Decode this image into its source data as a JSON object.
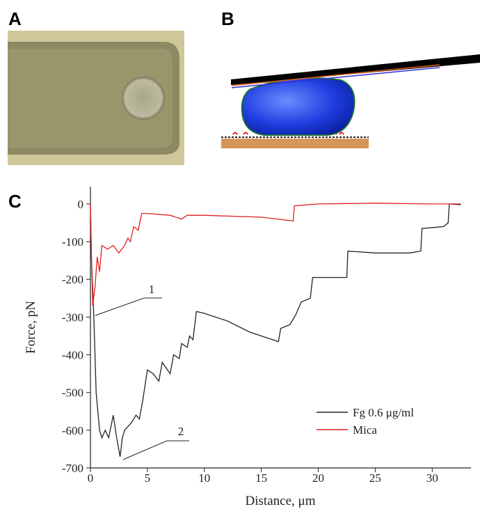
{
  "panel_labels": {
    "a": "A",
    "b": "B",
    "c": "C"
  },
  "chart_data": {
    "type": "line",
    "x_label": "Distance, μm",
    "y_label": "Force, pN",
    "xlim": [
      0,
      33.4
    ],
    "xticks": [
      0,
      5,
      10,
      15,
      20,
      25,
      30
    ],
    "ylim": [
      -700,
      46
    ],
    "yticks": [
      -700,
      -600,
      -500,
      -400,
      -300,
      -200,
      -100,
      0
    ],
    "legend": "lower right",
    "annotations": [
      "1",
      "2"
    ],
    "series": [
      {
        "name": "Fg 0.6 μg/ml",
        "color": "#222222",
        "x": [
          0,
          0.1,
          0.3,
          0.5,
          0.8,
          1.0,
          1.3,
          1.6,
          2.0,
          2.3,
          2.6,
          2.8,
          3.0,
          3.3,
          3.6,
          4.0,
          4.3,
          4.6,
          5.0,
          5.5,
          6.0,
          6.3,
          7.0,
          7.3,
          7.8,
          8.0,
          8.5,
          8.7,
          9.0,
          9.3,
          10,
          12,
          14,
          16.5,
          16.7,
          17.5,
          18,
          18.5,
          19.3,
          19.5,
          22.5,
          22.6,
          25,
          28,
          29,
          29.1,
          31,
          31.4,
          31.5,
          32.5
        ],
        "values": [
          0,
          -150,
          -300,
          -500,
          -600,
          -620,
          -600,
          -620,
          -560,
          -620,
          -670,
          -620,
          -600,
          -590,
          -580,
          -560,
          -570,
          -520,
          -440,
          -450,
          -470,
          -420,
          -450,
          -400,
          -410,
          -370,
          -380,
          -350,
          -360,
          -285,
          -290,
          -310,
          -340,
          -365,
          -330,
          -320,
          -295,
          -260,
          -250,
          -195,
          -195,
          -125,
          -130,
          -130,
          -125,
          -65,
          -60,
          -50,
          0,
          -2
        ]
      },
      {
        "name": "Mica",
        "color": "#e02020",
        "x": [
          0,
          0.1,
          0.2,
          0.4,
          0.6,
          0.8,
          1.0,
          1.5,
          2.0,
          2.5,
          3.0,
          3.3,
          3.5,
          3.8,
          4.2,
          4.5,
          5,
          7,
          8,
          8.5,
          10,
          15,
          17.8,
          17.9,
          20,
          25,
          30,
          32.5
        ],
        "values": [
          0,
          -150,
          -270,
          -220,
          -140,
          -180,
          -110,
          -120,
          -110,
          -130,
          -110,
          -90,
          -100,
          -60,
          -70,
          -25,
          -25,
          -30,
          -40,
          -30,
          -30,
          -35,
          -45,
          -5,
          0,
          2,
          0,
          0
        ]
      }
    ]
  }
}
